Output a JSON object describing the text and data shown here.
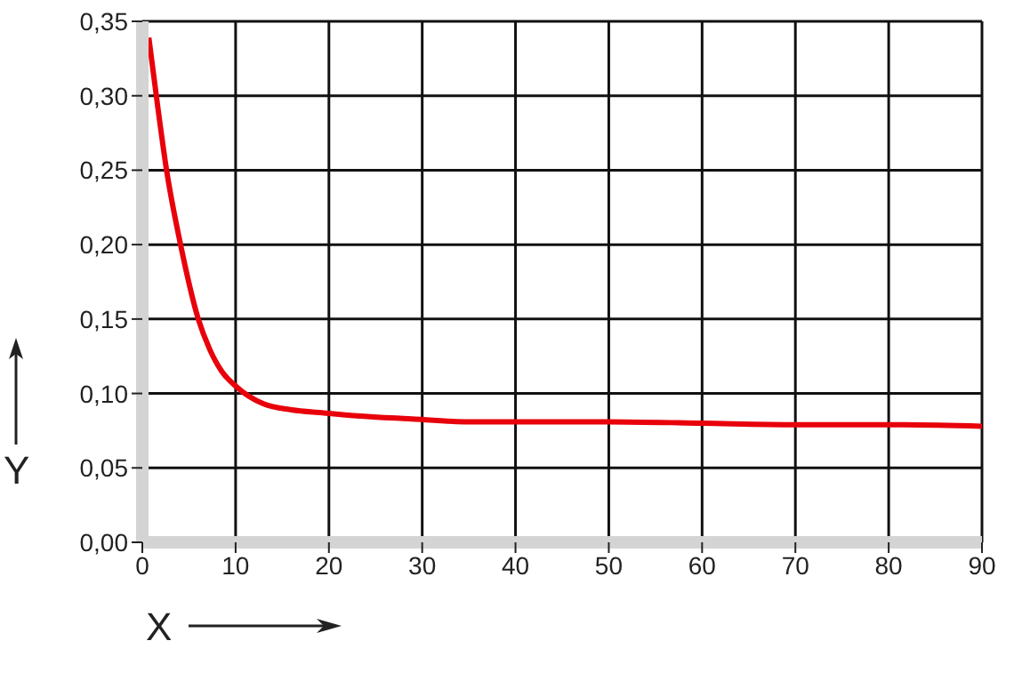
{
  "chart_data": {
    "type": "line",
    "xlabel": "X",
    "ylabel": "Y",
    "x": [
      0.7,
      1.5,
      2.6,
      4.1,
      6,
      7.2,
      8.5,
      10,
      13,
      16,
      19.3,
      23,
      28.5,
      35,
      40,
      50,
      60,
      70,
      80,
      90
    ],
    "series": [
      {
        "color": "#e8000b",
        "values": [
          0.339,
          0.3,
          0.25,
          0.2,
          0.15,
          0.13,
          0.115,
          0.105,
          0.093,
          0.089,
          0.087,
          0.085,
          0.083,
          0.081,
          0.081,
          0.081,
          0.08,
          0.079,
          0.079,
          0.078
        ]
      }
    ],
    "xlim": [
      0,
      90
    ],
    "xticks": [
      0,
      10,
      20,
      30,
      40,
      50,
      60,
      70,
      80,
      90
    ],
    "ylim": [
      0,
      0.35
    ],
    "yticks": [
      {
        "value": 0,
        "label": "0,00"
      },
      {
        "value": 0.05,
        "label": "0,05"
      },
      {
        "value": 0.1,
        "label": "0,10"
      },
      {
        "value": 0.15,
        "label": "0,15"
      },
      {
        "value": 0.2,
        "label": "0,20"
      },
      {
        "value": 0.25,
        "label": "0,25"
      },
      {
        "value": 0.3,
        "label": "0,30"
      },
      {
        "value": 0.35,
        "label": "0,35"
      }
    ],
    "grid": true,
    "marker": "none",
    "line_style": "solid"
  }
}
